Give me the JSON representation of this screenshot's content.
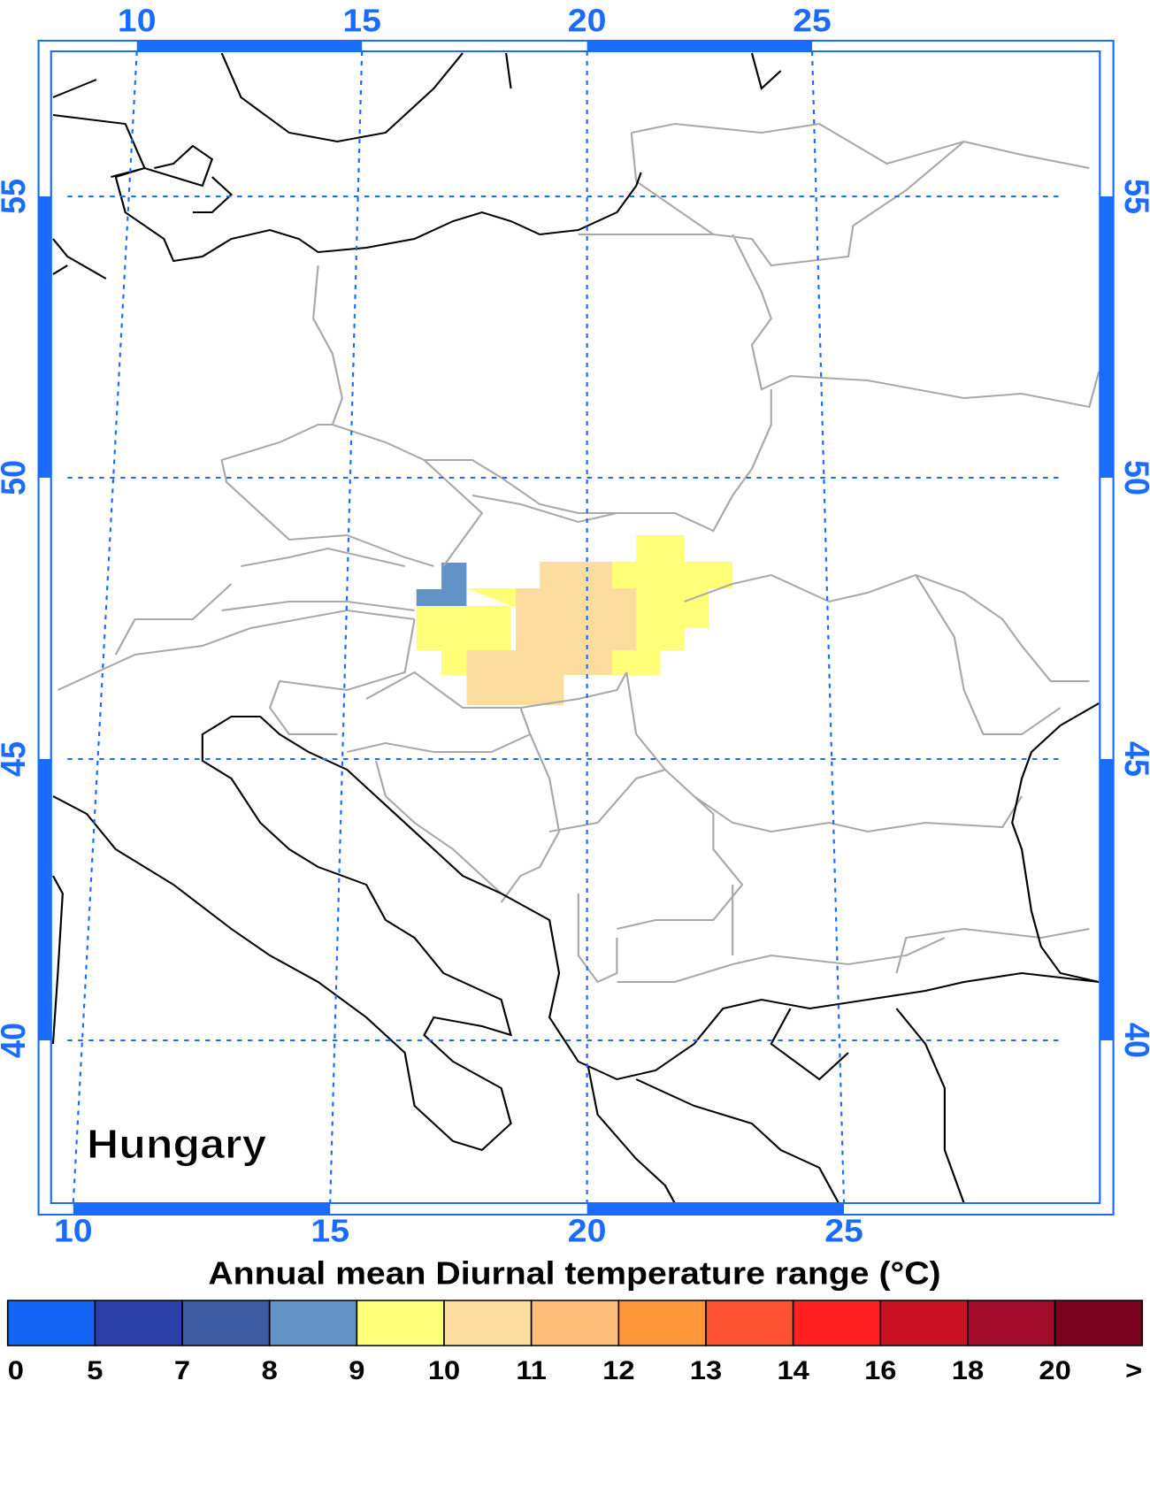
{
  "map": {
    "label": "Hungary",
    "lon_ticks": [
      10,
      15,
      20,
      25
    ],
    "lat_ticks": [
      55,
      50,
      45,
      40
    ]
  },
  "colorbar": {
    "title": "Annual mean Diurnal temperature range (°C)",
    "labels": [
      0,
      5,
      7,
      8,
      9,
      10,
      11,
      12,
      13,
      14,
      16,
      18,
      20,
      ">"
    ],
    "colors": [
      "#1464f5",
      "#2a3fa8",
      "#3b5aa3",
      "#6393c6",
      "#ffff78",
      "#fddca0",
      "#ffbf7a",
      "#ff963a",
      "#ff5232",
      "#ff2020",
      "#cb1022",
      "#a10a28",
      "#7a0020"
    ]
  }
}
